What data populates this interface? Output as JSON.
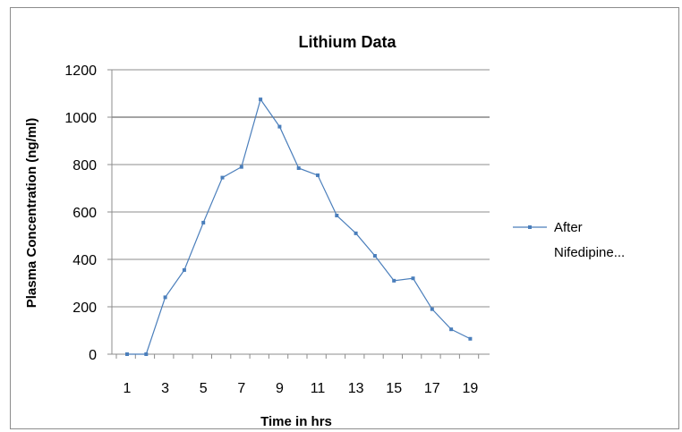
{
  "chart_data": {
    "type": "line",
    "title": "Lithium Data",
    "xlabel": "Time in  hrs",
    "ylabel": "Plasma Concentration (ng/ml)",
    "ylim": [
      0,
      1200
    ],
    "yticks": [
      0,
      200,
      400,
      600,
      800,
      1000,
      1200
    ],
    "x": [
      1,
      2,
      3,
      4,
      5,
      6,
      7,
      8,
      9,
      10,
      11,
      12,
      13,
      14,
      15,
      16,
      17,
      18,
      19
    ],
    "xtick_labels": [
      "1",
      "",
      "3",
      "",
      "5",
      "",
      "7",
      "",
      "9",
      "",
      "11",
      "",
      "13",
      "",
      "15",
      "",
      "17",
      "",
      "19"
    ],
    "grid": true,
    "legend_position": "right",
    "series": [
      {
        "name": "After Nifedipine...",
        "color": "#4a7ebb",
        "values": [
          0,
          0,
          240,
          355,
          555,
          745,
          790,
          1075,
          960,
          785,
          755,
          585,
          510,
          415,
          310,
          320,
          190,
          105,
          65
        ]
      }
    ]
  }
}
